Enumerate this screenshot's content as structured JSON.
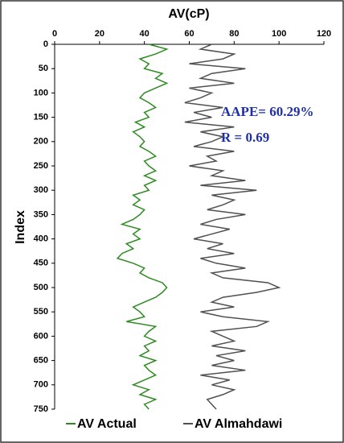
{
  "chart_data": {
    "type": "line",
    "x_axis_label": "AV(cP)",
    "y_axis_label": "Index",
    "x_axis_position": "top",
    "y_axis_reversed": true,
    "orientation": "vertical",
    "xlim": [
      0,
      120
    ],
    "xticks": [
      0,
      20,
      40,
      60,
      80,
      100,
      120
    ],
    "ylim": [
      0,
      750
    ],
    "yticks": [
      0,
      50,
      100,
      150,
      200,
      250,
      300,
      350,
      400,
      450,
      500,
      550,
      600,
      650,
      700,
      750
    ],
    "y": [
      0,
      10,
      20,
      30,
      40,
      50,
      60,
      70,
      80,
      90,
      100,
      110,
      120,
      130,
      140,
      150,
      160,
      170,
      180,
      190,
      200,
      210,
      220,
      230,
      240,
      250,
      260,
      270,
      280,
      290,
      300,
      310,
      320,
      330,
      340,
      350,
      360,
      370,
      380,
      390,
      400,
      410,
      420,
      430,
      440,
      450,
      460,
      470,
      480,
      490,
      500,
      510,
      520,
      530,
      540,
      550,
      560,
      570,
      580,
      590,
      600,
      610,
      620,
      630,
      640,
      650,
      660,
      670,
      680,
      690,
      700,
      710,
      720,
      730,
      740,
      750
    ],
    "series": [
      {
        "name": "AV Actual",
        "color": "#2e8b22",
        "values": [
          42,
          50,
          45,
          38,
          42,
          40,
          48,
          45,
          50,
          45,
          40,
          38,
          42,
          45,
          40,
          42,
          36,
          40,
          35,
          38,
          40,
          38,
          42,
          45,
          40,
          42,
          45,
          40,
          45,
          40,
          42,
          35,
          38,
          35,
          40,
          38,
          35,
          30,
          38,
          35,
          38,
          32,
          35,
          30,
          28,
          35,
          40,
          38,
          42,
          48,
          50,
          48,
          45,
          40,
          35,
          38,
          40,
          32,
          45,
          42,
          40,
          45,
          40,
          42,
          38,
          45,
          40,
          42,
          45,
          40,
          35,
          42,
          38,
          45,
          40,
          42
        ]
      },
      {
        "name": "AV Almahdawi",
        "color": "#505050",
        "values": [
          70,
          65,
          80,
          75,
          60,
          85,
          70,
          65,
          80,
          60,
          70,
          65,
          58,
          75,
          62,
          70,
          58,
          80,
          65,
          75,
          70,
          62,
          80,
          68,
          72,
          60,
          75,
          70,
          85,
          65,
          90,
          70,
          80,
          75,
          68,
          85,
          72,
          65,
          78,
          70,
          62,
          75,
          68,
          80,
          65,
          72,
          85,
          70,
          75,
          95,
          100,
          90,
          75,
          70,
          80,
          65,
          75,
          95,
          90,
          70,
          75,
          80,
          70,
          85,
          72,
          80,
          70,
          85,
          65,
          78,
          70,
          80,
          75,
          68,
          70,
          72
        ]
      }
    ],
    "annotations": [
      "AAPE= 60.29%",
      "R = 0.69"
    ]
  }
}
